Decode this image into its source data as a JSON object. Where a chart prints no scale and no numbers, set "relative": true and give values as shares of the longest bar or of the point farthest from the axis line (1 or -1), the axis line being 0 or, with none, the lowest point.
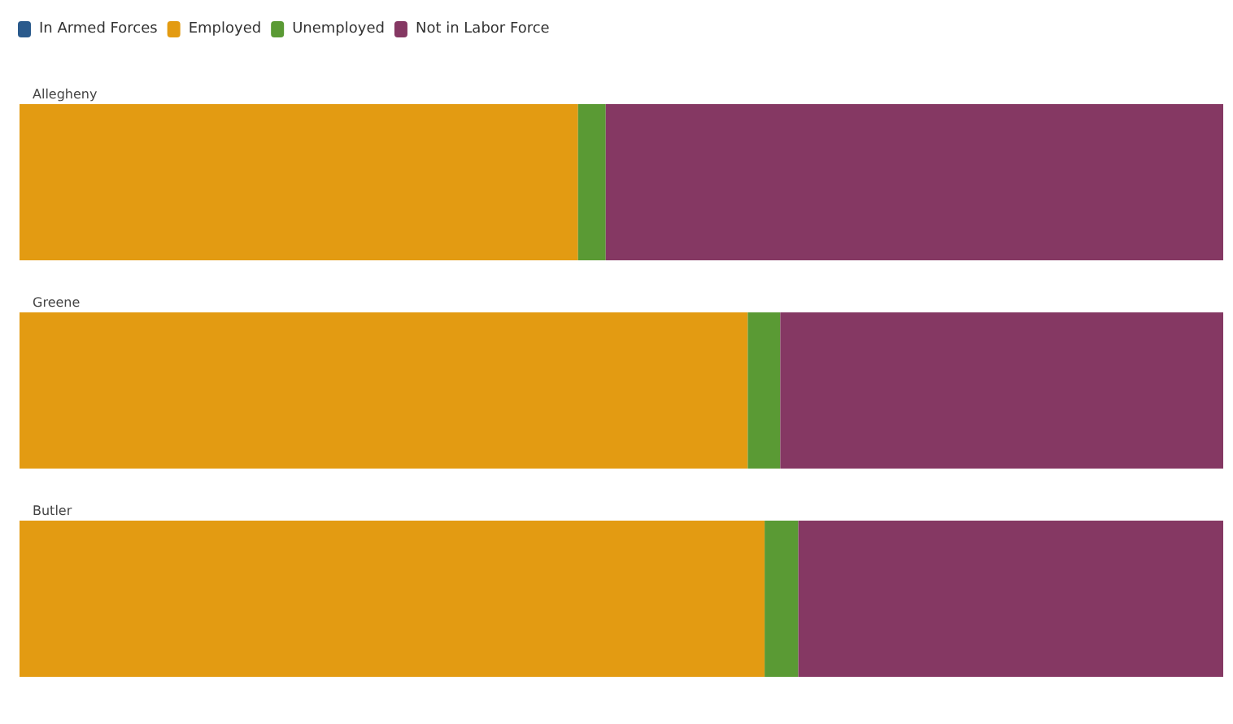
{
  "chart_data": {
    "type": "bar",
    "orientation": "horizontal",
    "stacked": true,
    "relative": true,
    "legend": "top left",
    "categories": [
      "Allegheny",
      "Greene",
      "Butler"
    ],
    "series": [
      {
        "name": "In Armed Forces",
        "color": "#2a5a8c",
        "values": [
          0,
          0,
          0
        ]
      },
      {
        "name": "Employed",
        "color": "#e39b12",
        "values": [
          0.464,
          0.605,
          0.619
        ]
      },
      {
        "name": "Unemployed",
        "color": "#5a9a34",
        "values": [
          0.023,
          0.027,
          0.028
        ]
      },
      {
        "name": "Not in Labor Force",
        "color": "#853863",
        "values": [
          0.513,
          0.368,
          0.353
        ]
      }
    ]
  }
}
